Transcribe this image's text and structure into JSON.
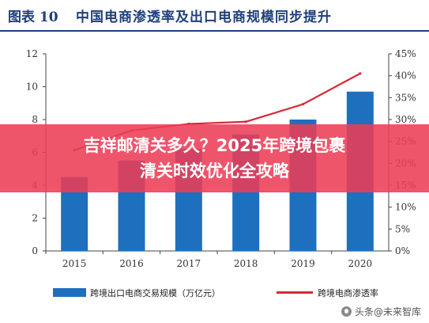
{
  "figure": {
    "number": "图表 10",
    "title": "中国电商渗透率及出口电商规模同步提升"
  },
  "banner": {
    "line1": "吉祥邮清关多久？2025年跨境包裹",
    "line2": "清关时效优化全攻略"
  },
  "watermark": "头条@未来智库",
  "chart_data": {
    "type": "bar",
    "categories": [
      "2015",
      "2016",
      "2017",
      "2018",
      "2019",
      "2020"
    ],
    "series": [
      {
        "name": "跨境出口电商交易规模（万亿元）",
        "kind": "bar",
        "axis": "left",
        "color": "#1f6fbf",
        "values": [
          4.5,
          5.5,
          6.2,
          7.1,
          8.0,
          9.7
        ]
      },
      {
        "name": "跨境电商渗透率",
        "kind": "line",
        "axis": "right",
        "color": "#d62a35",
        "values": [
          23.0,
          27.5,
          29.0,
          29.5,
          33.5,
          40.5
        ]
      }
    ],
    "y_left": {
      "min": 0,
      "max": 12,
      "ticks": [
        "0",
        "2",
        "4",
        "6",
        "8",
        "10",
        "12"
      ]
    },
    "y_right": {
      "min": 0,
      "max": 45,
      "ticks": [
        "0%",
        "5%",
        "10%",
        "15%",
        "20%",
        "25%",
        "30%",
        "35%",
        "40%",
        "45%"
      ]
    },
    "legend_position": "bottom",
    "grid": false
  }
}
